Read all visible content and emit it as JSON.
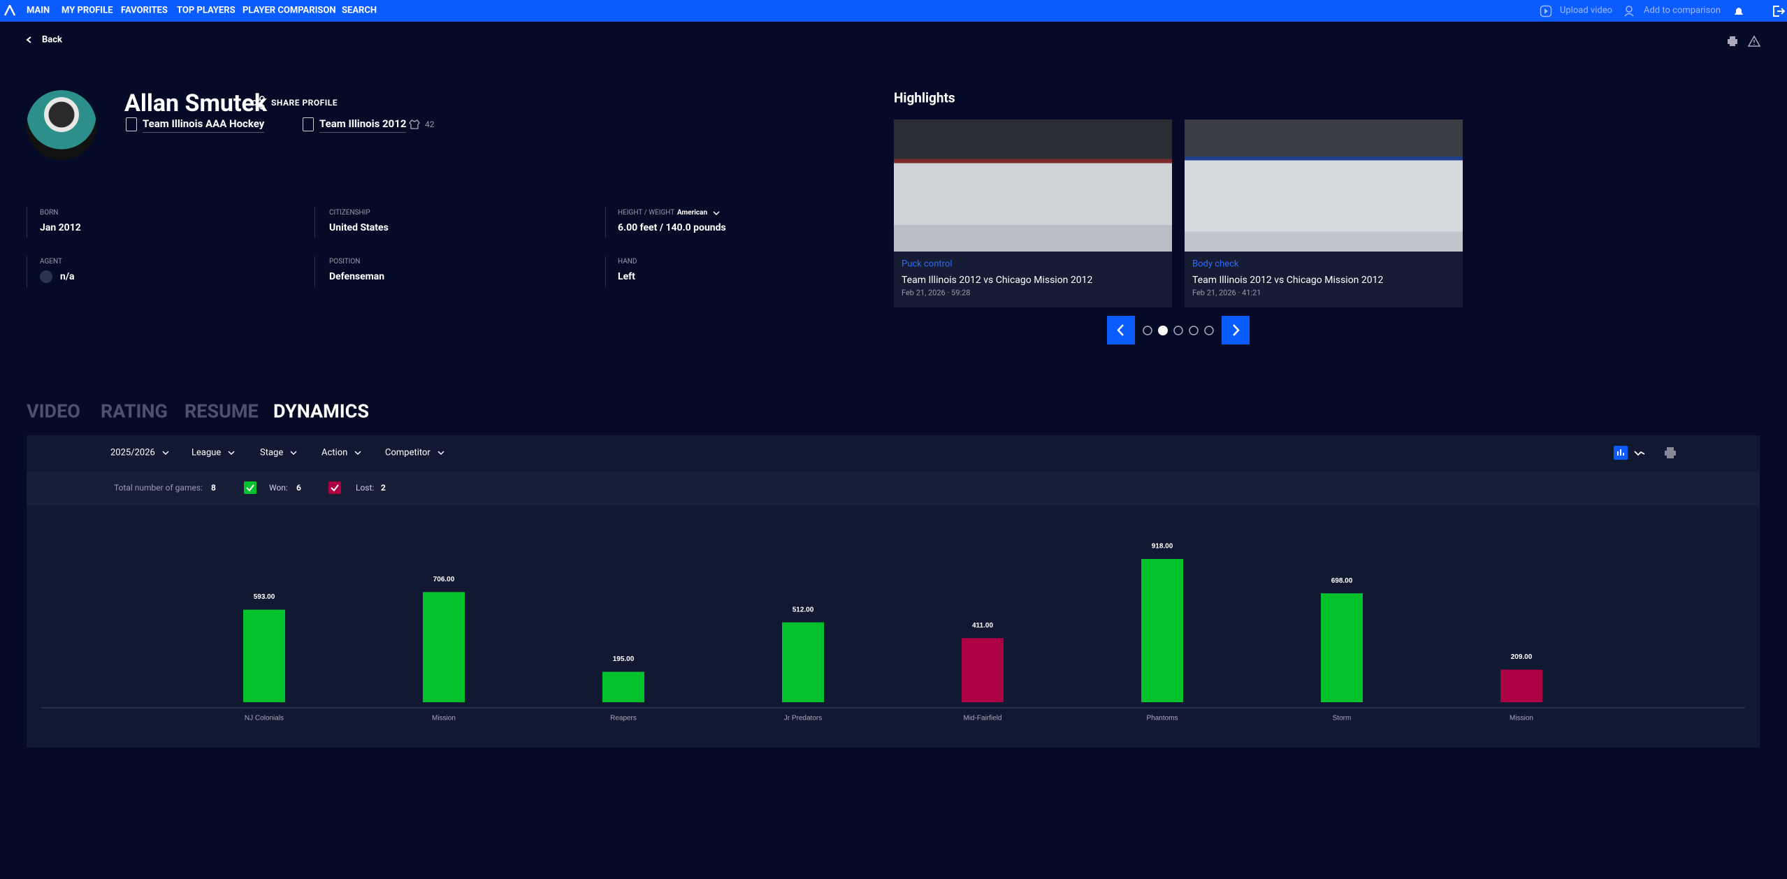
{
  "nav": {
    "items": [
      "MAIN",
      "MY PROFILE",
      "FAVORITES",
      "TOP PLAYERS",
      "PLAYER COMPARISON",
      "SEARCH"
    ],
    "upload": "Upload video",
    "compare": "Add to comparison"
  },
  "back": "Back",
  "profile": {
    "name": "Allan Smutek",
    "share": "SHARE PROFILE",
    "team": "Team Illinois AAA Hockey",
    "squad": "Team Illinois 2012",
    "number": 42
  },
  "info": [
    {
      "label": "BORN",
      "value": "Jan 2012"
    },
    {
      "label": "CITIZENSHIP",
      "value": "United States"
    },
    {
      "label": "HEIGHT / WEIGHT",
      "value": "6.00 feet / 140.0 pounds",
      "option": "American"
    },
    {
      "label": "AGENT",
      "value": "n/a"
    },
    {
      "label": "POSITION",
      "value": "Defenseman"
    },
    {
      "label": "HAND",
      "value": "Left"
    }
  ],
  "highlights": {
    "title": "Highlights",
    "cards": [
      {
        "tag": "Puck control",
        "title": "Team Illinois 2012 vs Chicago Mission 2012",
        "date": "Feb 21, 2026 · 59:28"
      },
      {
        "tag": "Body check",
        "title": "Team Illinois 2012 vs Chicago Mission 2012",
        "date": "Feb 21, 2026 · 41:21"
      }
    ]
  },
  "tabs": {
    "items": [
      "VIDEO",
      "RATING",
      "RESUME",
      "DYNAMICS"
    ],
    "active": 3
  },
  "filters": [
    "2025/2026",
    "League",
    "Stage",
    "Action",
    "Competitor"
  ],
  "stats": {
    "total_label": "Total number of games:",
    "total": 8,
    "won_label": "Won:",
    "won": 6,
    "lost_label": "Lost:",
    "lost": 2
  },
  "chart": {
    "type": "bar",
    "categories": [
      "NJ Colonials",
      "Mission",
      "Reapers",
      "Jr Predators",
      "Mid-Fairfield",
      "Phantoms",
      "Storm",
      "Mission"
    ],
    "values": [
      593,
      706,
      195,
      512,
      411,
      918,
      698,
      209
    ],
    "value_labels": [
      "593.00",
      "706.00",
      "195.00",
      "512.00",
      "411.00",
      "918.00",
      "698.00",
      "209.00"
    ],
    "colors": [
      "#03c02d",
      "#03c02d",
      "#03c02d",
      "#03c02d",
      "#ad0044",
      "#03c02d",
      "#03c02d",
      "#ad0044"
    ]
  }
}
